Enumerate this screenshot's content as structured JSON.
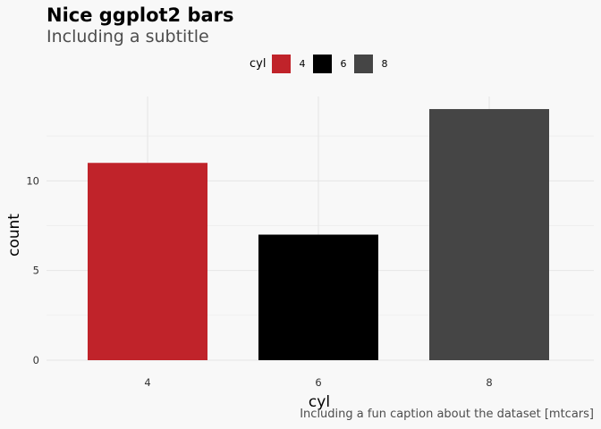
{
  "chart_data": {
    "type": "bar",
    "title": "Nice ggplot2 bars",
    "subtitle": "Including a subtitle",
    "caption": "Including a fun caption about the dataset [mtcars]",
    "xlabel": "cyl",
    "ylabel": "count",
    "categories": [
      "4",
      "6",
      "8"
    ],
    "values": [
      11,
      7,
      14
    ],
    "colors": [
      "#c0232a",
      "#000000",
      "#454545"
    ],
    "ylim": [
      0,
      14.7
    ],
    "yticks": [
      0,
      5,
      10
    ],
    "grid": true,
    "legend": {
      "title": "cyl",
      "position": "top",
      "entries": [
        "4",
        "6",
        "8"
      ]
    }
  }
}
